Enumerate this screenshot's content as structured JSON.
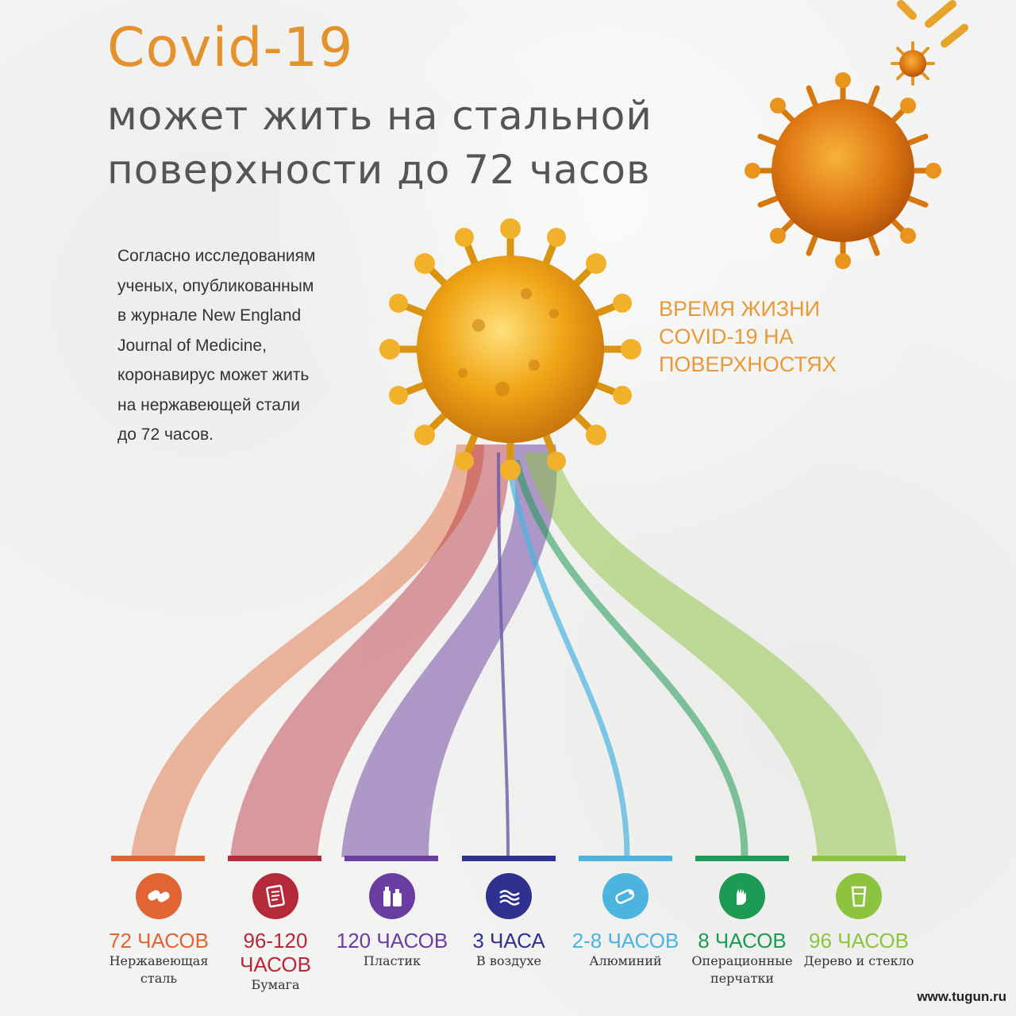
{
  "header": {
    "title": "Covid-19",
    "subtitle": "может жить на стальной поверхности до 72 часов"
  },
  "intro_text": "Согласно исследованиям ученых, опубликованным в журнале New England Journal of Medicine, коронавирус может жить на нержавеющей стали до 72 часов.",
  "lifetime_label": "ВРЕМЯ ЖИЗНИ COVID-19 НА ПОВЕРХНОСТЯХ",
  "surfaces": [
    {
      "value": "72 ЧАСОВ",
      "label": "Нержавеющая сталь",
      "color": "#e06434",
      "icon": "pills-icon"
    },
    {
      "value": "96-120 ЧАСОВ",
      "label": "Бумага",
      "color": "#b52a3a",
      "icon": "paper-icon"
    },
    {
      "value": "120 ЧАСОВ",
      "label": "Пластик",
      "color": "#6a3ea0",
      "icon": "bottles-icon"
    },
    {
      "value": "3 ЧАСА",
      "label": "В воздухе",
      "color": "#2e3190",
      "icon": "air-icon"
    },
    {
      "value": "2-8 ЧАСОВ",
      "label": "Алюминий",
      "color": "#4bb4df",
      "icon": "foil-icon"
    },
    {
      "value": "8 ЧАСОВ",
      "label": "Операционные перчатки",
      "color": "#1d9a54",
      "icon": "gloves-icon"
    },
    {
      "value": "96 ЧАСОВ",
      "label": "Дерево и стекло",
      "color": "#8cc43f",
      "icon": "glass-icon"
    }
  ],
  "watermark": "www.tugun.ru"
}
